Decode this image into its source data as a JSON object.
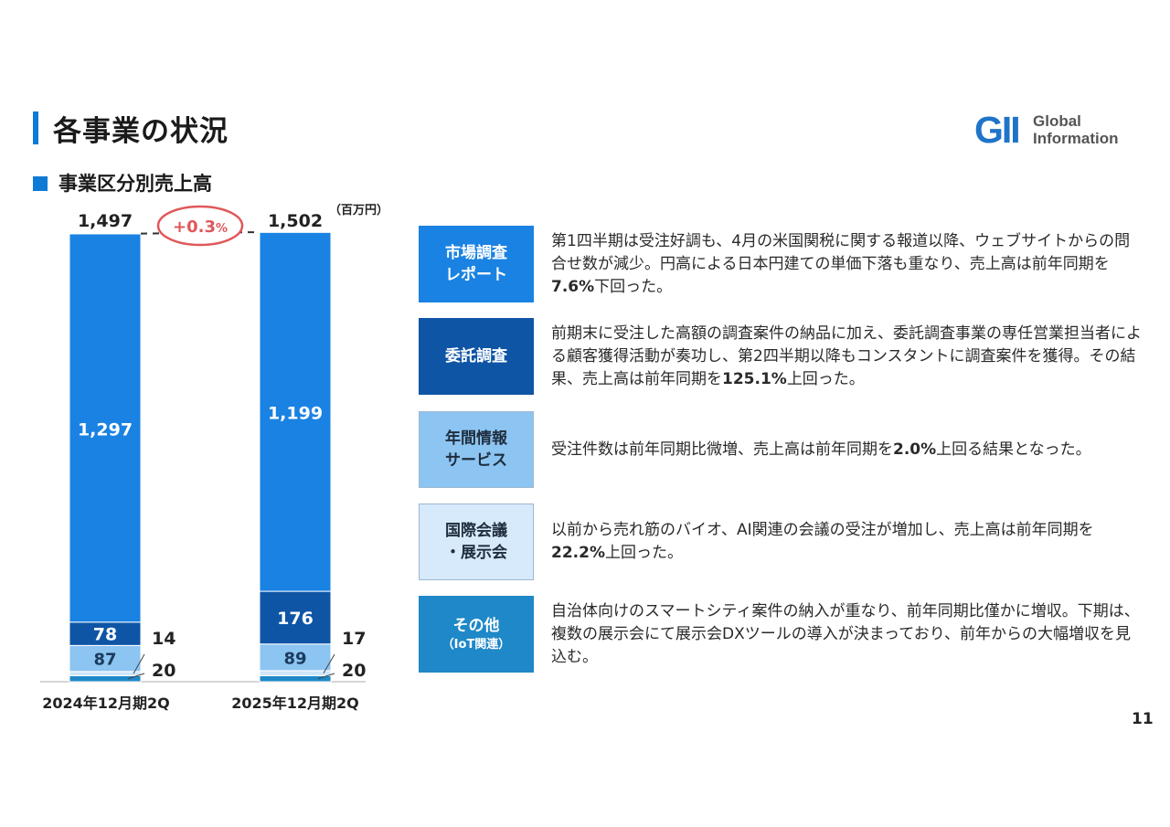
{
  "header": {
    "title": "各事業の状況",
    "logo": {
      "mark": "GII",
      "line1": "Global",
      "line2": "Information"
    }
  },
  "section": {
    "title": "事業区分別売上高",
    "unit": "（百万円）"
  },
  "chart_data": {
    "type": "bar",
    "stacked": true,
    "categories": [
      "2024年12月期2Q",
      "2025年12月期2Q"
    ],
    "series": [
      {
        "name": "その他（IoT関連）",
        "values": [
          20,
          20
        ],
        "color": "#1e88c8"
      },
      {
        "name": "国際会議・展示会",
        "values": [
          14,
          17
        ],
        "color": "#cfe6fb"
      },
      {
        "name": "年間情報サービス",
        "values": [
          87,
          89
        ],
        "color": "#8cc4f2"
      },
      {
        "name": "委託調査",
        "values": [
          78,
          176
        ],
        "color": "#0f55a6"
      },
      {
        "name": "市場調査レポート",
        "values": [
          1297,
          1199
        ],
        "color": "#1a82e2"
      }
    ],
    "totals": [
      1497,
      1502
    ],
    "total_labels": [
      "1,497",
      "1,502"
    ],
    "value_labels": [
      [
        "20",
        "14",
        "87",
        "78",
        "1,297"
      ],
      [
        "20",
        "17",
        "89",
        "176",
        "1,199"
      ]
    ],
    "change_label": "+0.3",
    "change_unit": "%",
    "ylim": [
      0,
      1502
    ]
  },
  "segments": [
    {
      "label_lines": [
        "市場調査",
        "レポート"
      ],
      "sub": "",
      "bg": "#1a82e2",
      "fg": "#ffffff",
      "desc_parts": [
        {
          "text": "第1四半期は受注好調も、4月の米国関税に関する報道以降、ウェブサイトからの問合せ数が減少。円高による日本円建ての単価下落も重なり、売上高は前年同期を",
          "bold": false
        },
        {
          "text": "7.6%",
          "bold": true
        },
        {
          "text": "下回った。",
          "bold": false
        }
      ]
    },
    {
      "label_lines": [
        "委託調査"
      ],
      "sub": "",
      "bg": "#0f55a6",
      "fg": "#ffffff",
      "desc_parts": [
        {
          "text": "前期末に受注した高額の調査案件の納品に加え、委託調査事業の専任営業担当者による顧客獲得活動が奏功し、第2四半期以降もコンスタントに調査案件を獲得。その結果、売上高は前年同期を",
          "bold": false
        },
        {
          "text": "125.1%",
          "bold": true
        },
        {
          "text": "上回った。",
          "bold": false
        }
      ]
    },
    {
      "label_lines": [
        "年間情報",
        "サービス"
      ],
      "sub": "",
      "bg": "#8cc4f2",
      "fg": "#1f2d3d",
      "desc_parts": [
        {
          "text": "受注件数は前年同期比微増、売上高は前年同期を",
          "bold": false
        },
        {
          "text": "2.0%",
          "bold": true
        },
        {
          "text": "上回る結果となった。",
          "bold": false
        }
      ]
    },
    {
      "label_lines": [
        "国際会議",
        "・展示会"
      ],
      "sub": "",
      "bg": "#d6eafc",
      "fg": "#1f2d3d",
      "desc_parts": [
        {
          "text": "以前から売れ筋のバイオ、AI関連の会議の受注が増加し、売上高は前年同期を",
          "bold": false
        },
        {
          "text": "22.2%",
          "bold": true
        },
        {
          "text": "上回った。",
          "bold": false
        }
      ]
    },
    {
      "label_lines": [
        "その他"
      ],
      "sub": "（IoT関連）",
      "bg": "#1e88c8",
      "fg": "#ffffff",
      "desc_parts": [
        {
          "text": "自治体向けのスマートシティ案件の納入が重なり、前年同期比僅かに増収。下期は、複数の展示会にて展示会DXツールの導入が決まっており、前年からの大幅増収を見込む。",
          "bold": false
        }
      ]
    }
  ],
  "page_number": "11"
}
